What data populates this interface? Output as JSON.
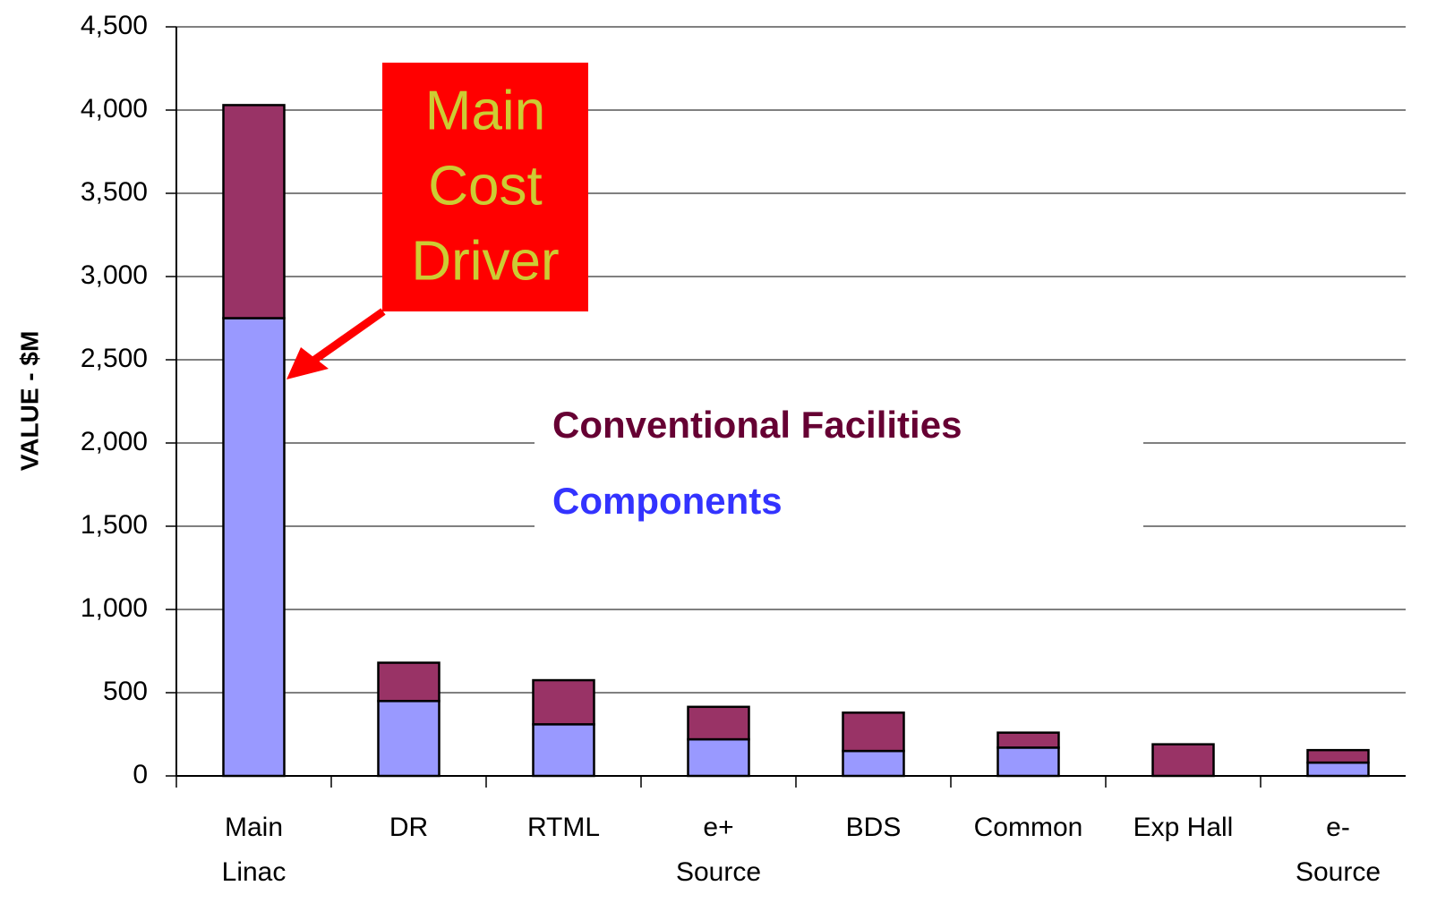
{
  "chart_data": {
    "type": "stacked_bar",
    "y_label": "VALUE - $M",
    "categories": [
      [
        "Main",
        "Linac"
      ],
      [
        "DR"
      ],
      [
        "RTML"
      ],
      [
        "e+",
        "Source"
      ],
      [
        "BDS"
      ],
      [
        "Common"
      ],
      [
        "Exp Hall"
      ],
      [
        "e-",
        "Source"
      ]
    ],
    "series": [
      {
        "name": "Components",
        "color": "#9999ff",
        "text_color": "#3333ff",
        "values": [
          2750,
          450,
          310,
          220,
          150,
          170,
          0,
          80
        ]
      },
      {
        "name": "Conventional Facilities",
        "color": "#993366",
        "text_color": "#660033",
        "values": [
          1280,
          230,
          265,
          195,
          230,
          90,
          190,
          75
        ]
      }
    ],
    "ylim": [
      0,
      4500
    ],
    "yticks": [
      0,
      500,
      {
        "value": 1000,
        "label": "1,000"
      },
      {
        "value": 1500,
        "label": "1,500"
      },
      {
        "value": 2000,
        "label": "2,000"
      },
      {
        "value": 2500,
        "label": "2,500"
      },
      {
        "value": 3000,
        "label": "3,000"
      },
      {
        "value": 3500,
        "label": "3,500"
      },
      {
        "value": 4000,
        "label": "4,000"
      },
      {
        "value": 4500,
        "label": "4,500"
      }
    ],
    "grid": true,
    "annotation": {
      "lines": [
        "Main",
        "Cost",
        "Driver"
      ],
      "color": "#ff0000",
      "text_color": "#cccc33"
    }
  }
}
